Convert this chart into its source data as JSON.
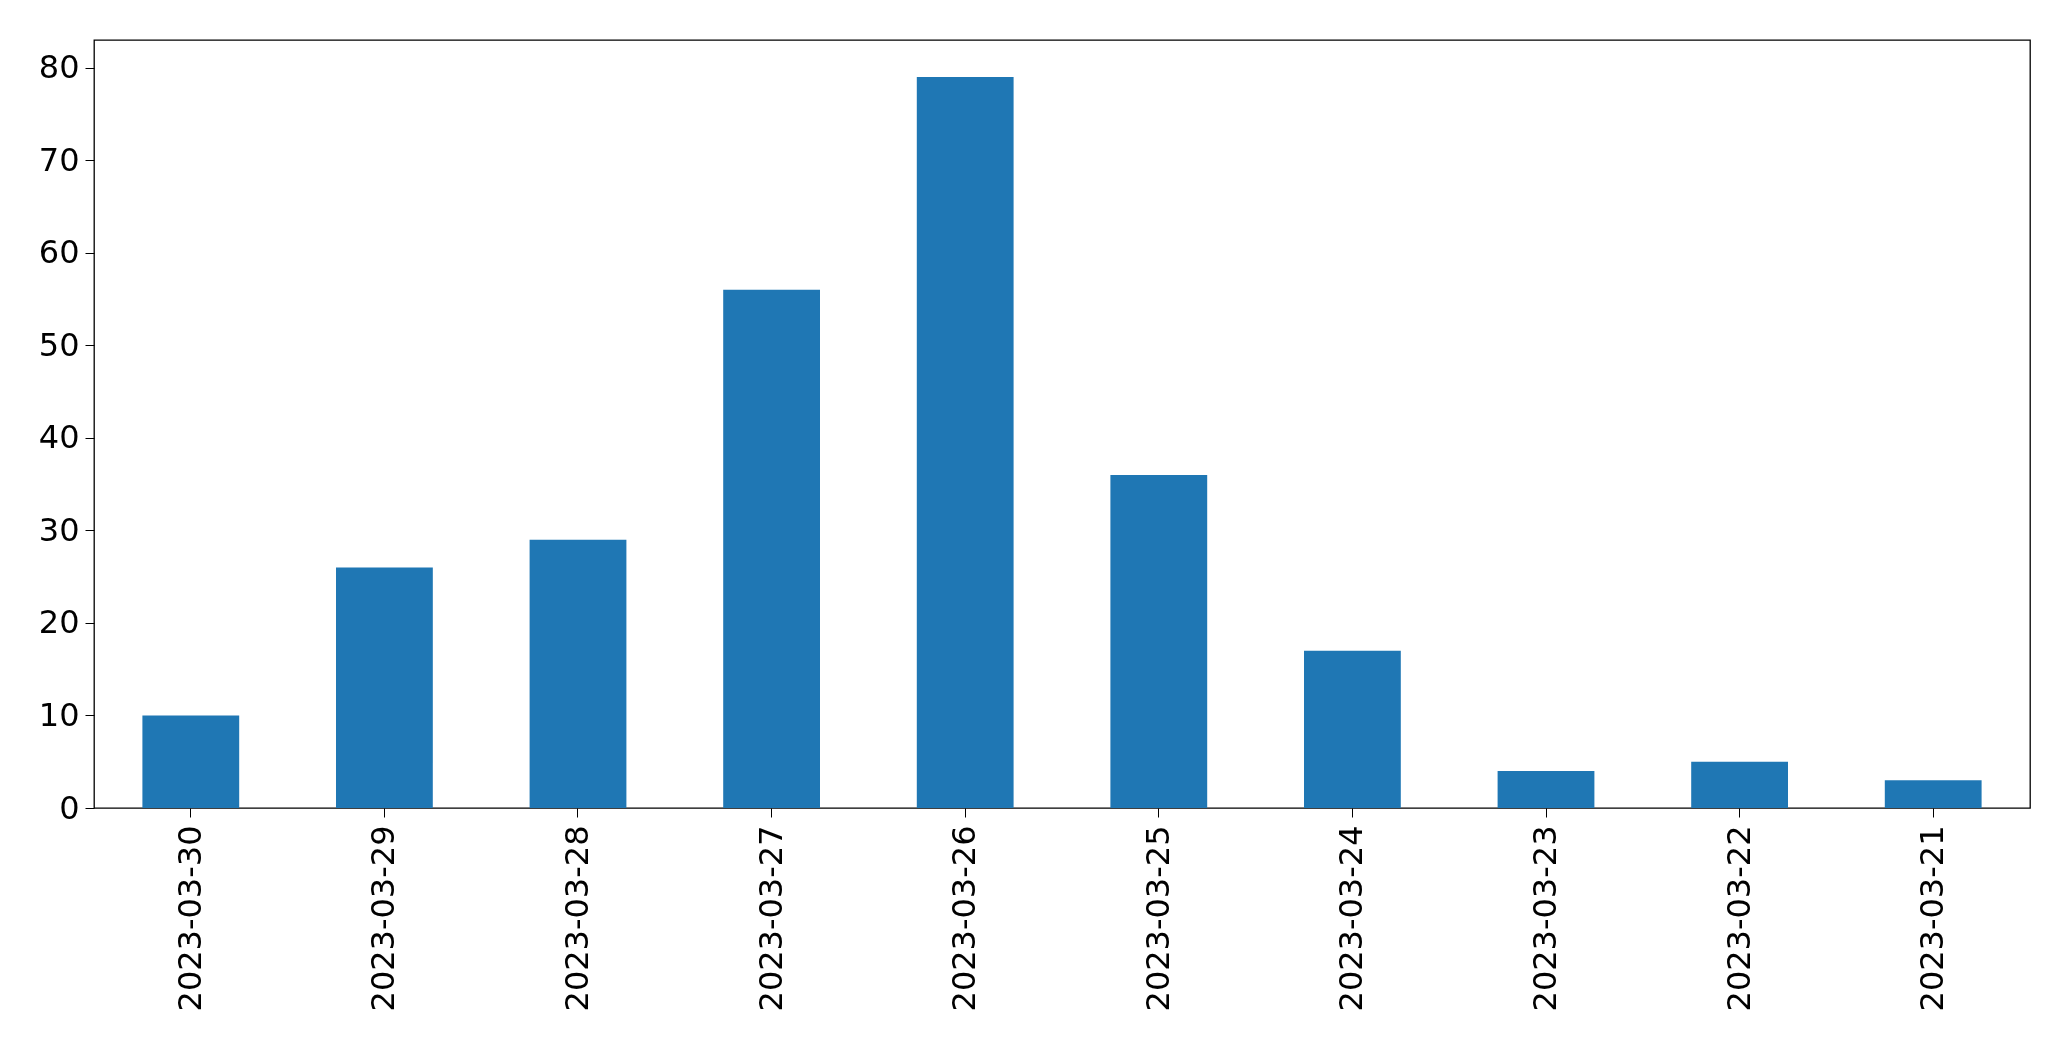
{
  "chart_data": {
    "type": "bar",
    "categories": [
      "2023-03-30",
      "2023-03-29",
      "2023-03-28",
      "2023-03-27",
      "2023-03-26",
      "2023-03-25",
      "2023-03-24",
      "2023-03-23",
      "2023-03-22",
      "2023-03-21"
    ],
    "values": [
      10,
      26,
      29,
      56,
      79,
      36,
      17,
      4,
      5,
      3
    ],
    "color": "#1f77b4",
    "ylim": [
      0,
      83
    ],
    "yticks": [
      0,
      10,
      20,
      30,
      40,
      50,
      60,
      70,
      80
    ],
    "grid": false
  }
}
